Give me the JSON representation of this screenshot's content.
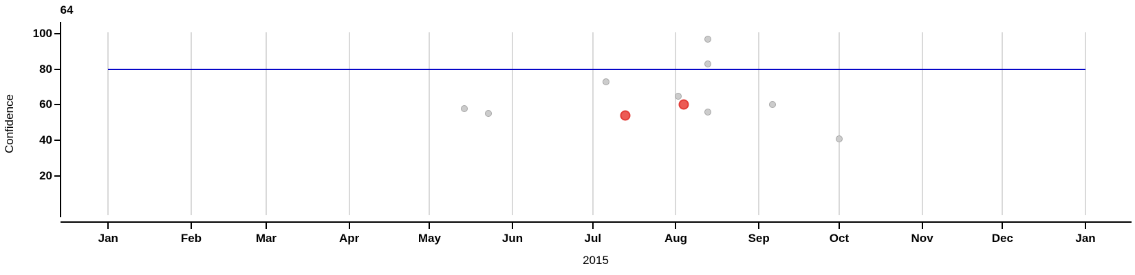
{
  "chart_data": {
    "type": "scatter",
    "title": "64",
    "xlabel": "2015",
    "ylabel": "Confidence",
    "grid": "vertical-month-gridlines-only",
    "legend": "none",
    "colors": {
      "gridline": "#D9D9D9",
      "axis": "#000000",
      "reference_line": "#0505C8",
      "point_default_fill": "#CCCCCC",
      "point_default_stroke": "#A5A5A5",
      "point_highlight_fill": "#EC5B55",
      "point_highlight_stroke": "#E23B36"
    },
    "x_axis": {
      "tick_labels": [
        "Jan",
        "Feb",
        "Mar",
        "Apr",
        "May",
        "Jun",
        "Jul",
        "Aug",
        "Sep",
        "Oct",
        "Nov",
        "Dec",
        "Jan"
      ],
      "tick_days": [
        1,
        32,
        60,
        91,
        121,
        152,
        182,
        213,
        244,
        274,
        305,
        335,
        366
      ],
      "lim_days": [
        -16.8,
        383.2
      ]
    },
    "y_axis": {
      "tick_labels": [
        "20",
        "40",
        "60",
        "80",
        "100"
      ],
      "tick_values": [
        20,
        40,
        60,
        80,
        100
      ],
      "lim": [
        -2.05,
        100.77
      ]
    },
    "reference_line": {
      "y": 80,
      "x_start_day": 1,
      "x_end_day": 366
    },
    "series": [
      {
        "name": "default",
        "role": "point_default",
        "points": [
          {
            "date": "May 14",
            "day": 134,
            "value": 58
          },
          {
            "date": "May 23",
            "day": 143,
            "value": 55
          },
          {
            "date": "Jul 6",
            "day": 187,
            "value": 73
          },
          {
            "date": "Aug 2",
            "day": 214,
            "value": 65
          },
          {
            "date": "Aug 13",
            "day": 225,
            "value": 97
          },
          {
            "date": "Aug 13",
            "day": 225,
            "value": 83
          },
          {
            "date": "Aug 13",
            "day": 225,
            "value": 56
          },
          {
            "date": "Sep 6",
            "day": 249,
            "value": 60
          },
          {
            "date": "Oct 1",
            "day": 274,
            "value": 41
          }
        ]
      },
      {
        "name": "highlighted",
        "role": "point_highlight",
        "points": [
          {
            "date": "Jul 13",
            "day": 194,
            "value": 54
          },
          {
            "date": "Aug 4",
            "day": 216,
            "value": 60
          }
        ]
      }
    ]
  }
}
